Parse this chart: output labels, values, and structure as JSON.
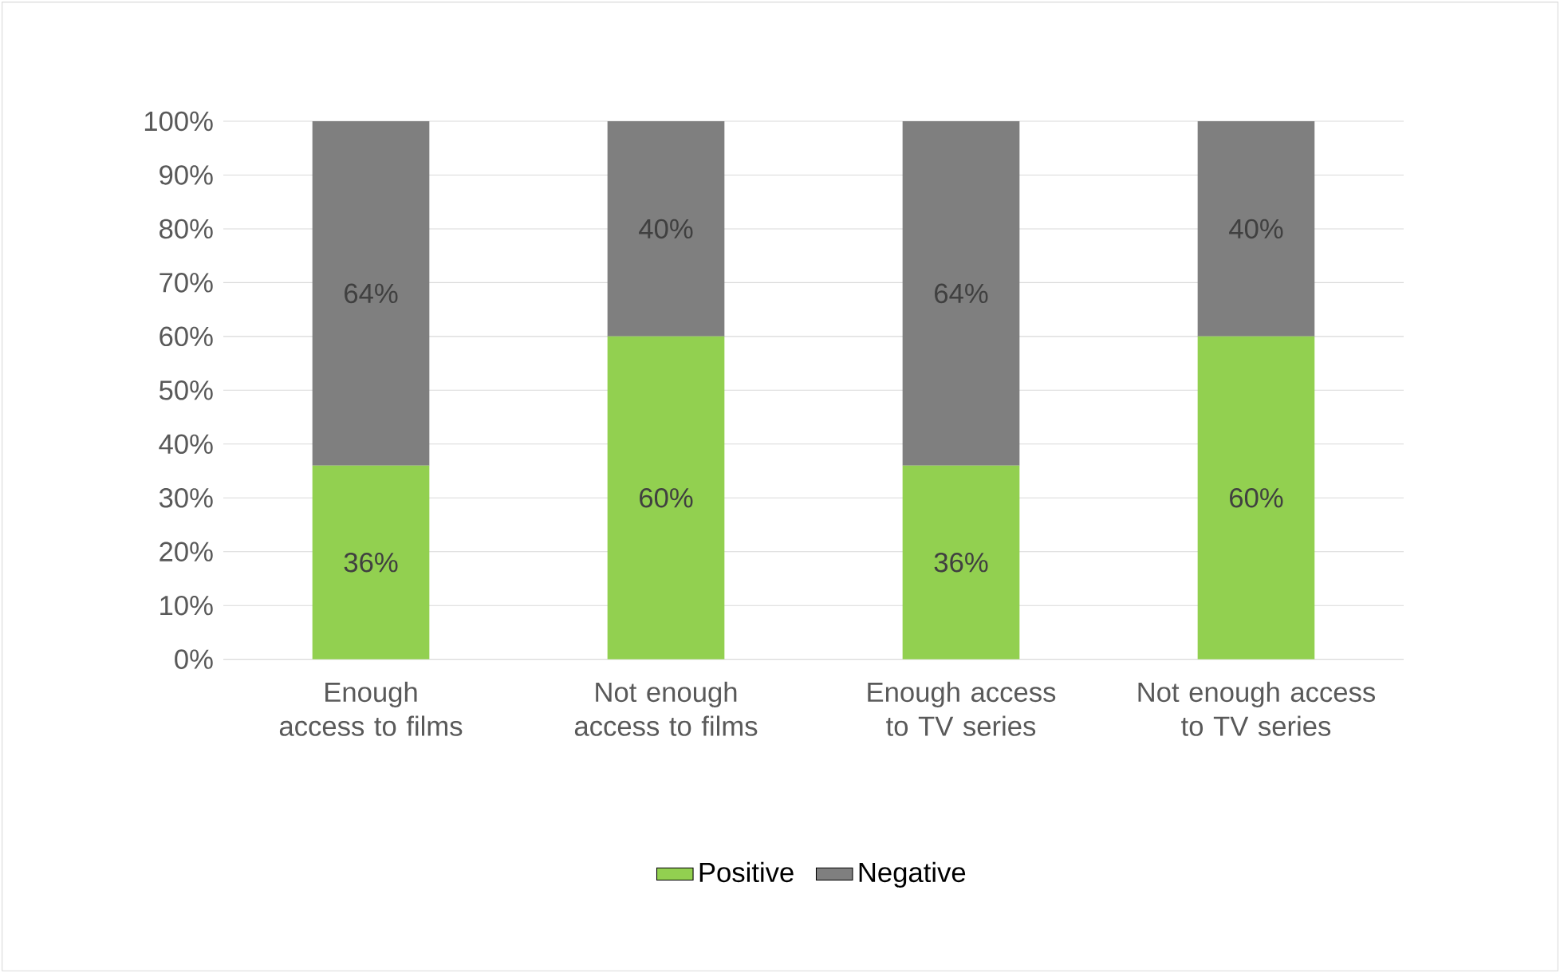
{
  "chart_data": {
    "type": "bar",
    "stacked": true,
    "categories": [
      "Enough access to films",
      "Not enough access to films",
      "Enough access to TV series",
      "Not enough access to TV series"
    ],
    "series": [
      {
        "name": "Positive",
        "color": "#92d050",
        "values": [
          36,
          60,
          36,
          60
        ],
        "value_labels": [
          "36%",
          "60%",
          "36%",
          "60%"
        ]
      },
      {
        "name": "Negative",
        "color": "#7f7f7f",
        "values": [
          64,
          40,
          64,
          40
        ],
        "value_labels": [
          "64%",
          "40%",
          "64%",
          "40%"
        ]
      }
    ],
    "ylim": [
      0,
      100
    ],
    "yticks": [
      {
        "value": 0,
        "label": "0%"
      },
      {
        "value": 10,
        "label": "10%"
      },
      {
        "value": 20,
        "label": "20%"
      },
      {
        "value": 30,
        "label": "30%"
      },
      {
        "value": 40,
        "label": "40%"
      },
      {
        "value": 50,
        "label": "50%"
      },
      {
        "value": 60,
        "label": "60%"
      },
      {
        "value": 70,
        "label": "70%"
      },
      {
        "value": 80,
        "label": "80%"
      },
      {
        "value": 90,
        "label": "90%"
      },
      {
        "value": 100,
        "label": "100%"
      }
    ],
    "grid": "y",
    "legend": "bottom"
  }
}
